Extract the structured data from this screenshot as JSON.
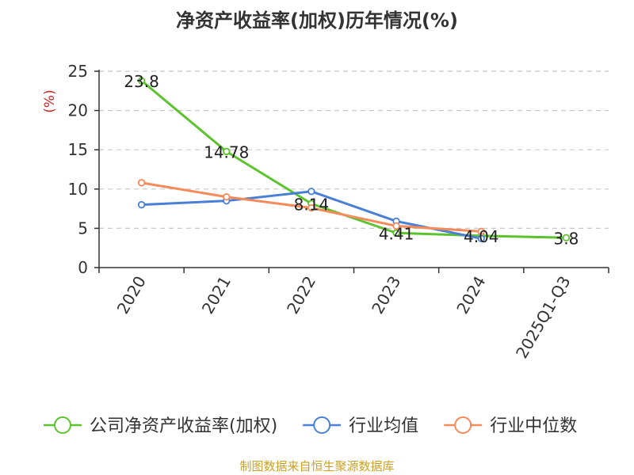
{
  "chart_data": {
    "type": "line",
    "title": "净资产收益率(加权)历年情况(%)",
    "ylabel": "(%)",
    "ylim": [
      0,
      25
    ],
    "yticks": [
      0,
      5,
      10,
      15,
      20,
      25
    ],
    "categories": [
      "2020",
      "2021",
      "2022",
      "2023",
      "2024",
      "2025Q1-Q3"
    ],
    "grid": true,
    "legend_position": "bottom",
    "series": [
      {
        "name": "公司净资产收益率(加权)",
        "color": "#5cc22e",
        "values": [
          23.8,
          14.78,
          8.14,
          4.41,
          4.04,
          3.8
        ],
        "labels": [
          "23.8",
          "14.78",
          "8.14",
          "4.41",
          "4.04",
          "3.8"
        ]
      },
      {
        "name": "行业均值",
        "color": "#4a7fd6",
        "values": [
          8.0,
          8.5,
          9.7,
          5.9,
          3.7,
          null
        ]
      },
      {
        "name": "行业中位数",
        "color": "#f58a5a",
        "values": [
          10.8,
          9.0,
          7.6,
          5.3,
          4.6,
          null
        ]
      }
    ]
  },
  "source": "制图数据来自恒生聚源数据库"
}
